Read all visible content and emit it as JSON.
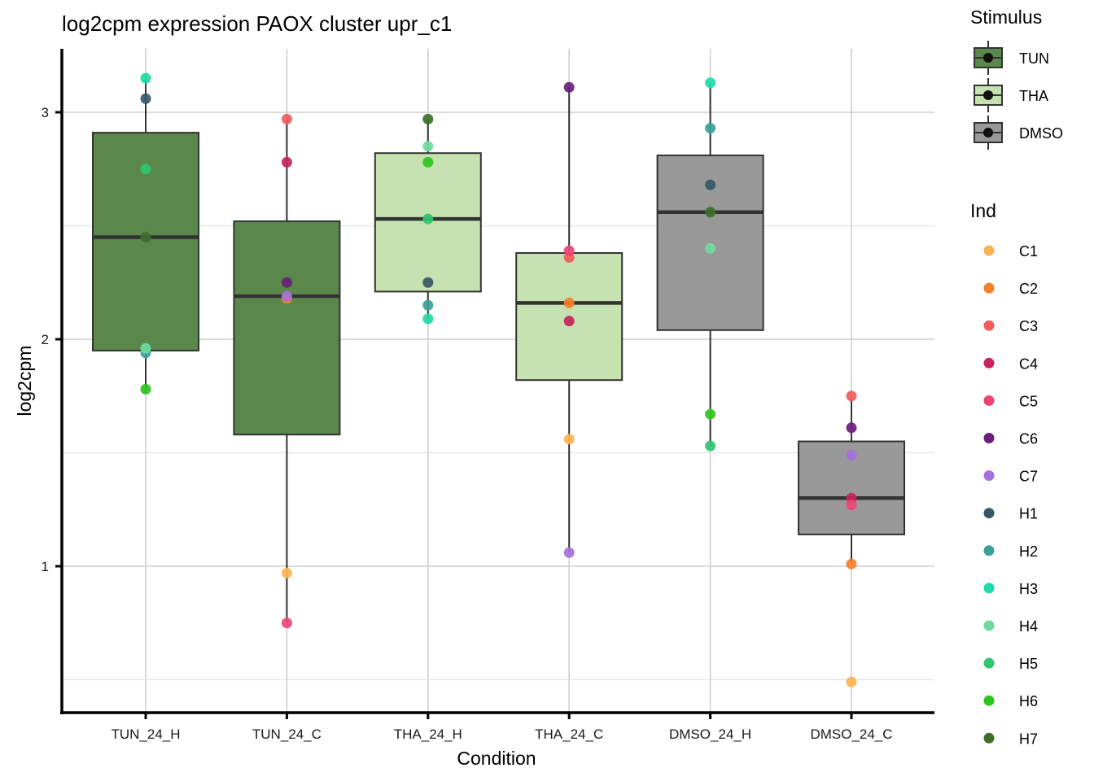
{
  "chart_data": {
    "type": "boxplot",
    "title": "log2cpm expression PAOX cluster upr_c1",
    "xlabel": "Condition",
    "ylabel": "log2cpm",
    "ylim": [
      0.36,
      3.3
    ],
    "yticks": [
      1,
      2,
      3
    ],
    "ytick_labels": [
      "1",
      "2",
      "3"
    ],
    "y_minor_gridlines": [
      0.5,
      1.5,
      2.5
    ],
    "grid": true,
    "categories": [
      "TUN_24_H",
      "TUN_24_C",
      "THA_24_H",
      "THA_24_C",
      "DMSO_24_H",
      "DMSO_24_C"
    ],
    "boxes": [
      {
        "condition": "TUN_24_H",
        "stimulus": "TUN",
        "lower_whisker": 1.78,
        "q1": 1.95,
        "median": 2.45,
        "q3": 2.91,
        "upper_whisker": 3.15
      },
      {
        "condition": "TUN_24_C",
        "stimulus": "TUN",
        "lower_whisker": 0.75,
        "q1": 1.58,
        "median": 2.19,
        "q3": 2.52,
        "upper_whisker": 2.97
      },
      {
        "condition": "THA_24_H",
        "stimulus": "THA",
        "lower_whisker": 2.09,
        "q1": 2.21,
        "median": 2.53,
        "q3": 2.82,
        "upper_whisker": 2.97
      },
      {
        "condition": "THA_24_C",
        "stimulus": "THA",
        "lower_whisker": 1.06,
        "q1": 1.82,
        "median": 2.16,
        "q3": 2.38,
        "upper_whisker": 3.11
      },
      {
        "condition": "DMSO_24_H",
        "stimulus": "DMSO",
        "lower_whisker": 1.53,
        "q1": 2.04,
        "median": 2.56,
        "q3": 2.81,
        "upper_whisker": 3.13
      },
      {
        "condition": "DMSO_24_C",
        "stimulus": "DMSO",
        "lower_whisker": 1.01,
        "q1": 1.14,
        "median": 1.3,
        "q3": 1.55,
        "upper_whisker": 1.74
      }
    ],
    "points": [
      {
        "condition": "TUN_24_H",
        "ind": "H3",
        "value": 3.15
      },
      {
        "condition": "TUN_24_H",
        "ind": "H1",
        "value": 3.06
      },
      {
        "condition": "TUN_24_H",
        "ind": "H5",
        "value": 2.75
      },
      {
        "condition": "TUN_24_H",
        "ind": "H7",
        "value": 2.45
      },
      {
        "condition": "TUN_24_H",
        "ind": "H2",
        "value": 1.94
      },
      {
        "condition": "TUN_24_H",
        "ind": "H4",
        "value": 1.96
      },
      {
        "condition": "TUN_24_H",
        "ind": "H6",
        "value": 1.78
      },
      {
        "condition": "TUN_24_C",
        "ind": "C3",
        "value": 2.97
      },
      {
        "condition": "TUN_24_C",
        "ind": "C4",
        "value": 2.78
      },
      {
        "condition": "TUN_24_C",
        "ind": "C6",
        "value": 2.25
      },
      {
        "condition": "TUN_24_C",
        "ind": "C2",
        "value": 2.18
      },
      {
        "condition": "TUN_24_C",
        "ind": "C7",
        "value": 2.19
      },
      {
        "condition": "TUN_24_C",
        "ind": "C1",
        "value": 0.97
      },
      {
        "condition": "TUN_24_C",
        "ind": "C5",
        "value": 0.75
      },
      {
        "condition": "THA_24_H",
        "ind": "H7",
        "value": 2.97
      },
      {
        "condition": "THA_24_H",
        "ind": "H4",
        "value": 2.85
      },
      {
        "condition": "THA_24_H",
        "ind": "H6",
        "value": 2.78
      },
      {
        "condition": "THA_24_H",
        "ind": "H5",
        "value": 2.53
      },
      {
        "condition": "THA_24_H",
        "ind": "H1",
        "value": 2.25
      },
      {
        "condition": "THA_24_H",
        "ind": "H2",
        "value": 2.15
      },
      {
        "condition": "THA_24_H",
        "ind": "H3",
        "value": 2.09
      },
      {
        "condition": "THA_24_C",
        "ind": "C6",
        "value": 3.11
      },
      {
        "condition": "THA_24_C",
        "ind": "C3",
        "value": 2.36
      },
      {
        "condition": "THA_24_C",
        "ind": "C5",
        "value": 2.39
      },
      {
        "condition": "THA_24_C",
        "ind": "C2",
        "value": 2.16
      },
      {
        "condition": "THA_24_C",
        "ind": "C4",
        "value": 2.08
      },
      {
        "condition": "THA_24_C",
        "ind": "C1",
        "value": 1.56
      },
      {
        "condition": "THA_24_C",
        "ind": "C7",
        "value": 1.06
      },
      {
        "condition": "DMSO_24_H",
        "ind": "H3",
        "value": 3.13
      },
      {
        "condition": "DMSO_24_H",
        "ind": "H2",
        "value": 2.93
      },
      {
        "condition": "DMSO_24_H",
        "ind": "H1",
        "value": 2.68
      },
      {
        "condition": "DMSO_24_H",
        "ind": "H7",
        "value": 2.56
      },
      {
        "condition": "DMSO_24_H",
        "ind": "H4",
        "value": 2.4
      },
      {
        "condition": "DMSO_24_H",
        "ind": "H6",
        "value": 1.67
      },
      {
        "condition": "DMSO_24_H",
        "ind": "H5",
        "value": 1.53
      },
      {
        "condition": "DMSO_24_C",
        "ind": "C3",
        "value": 1.75
      },
      {
        "condition": "DMSO_24_C",
        "ind": "C6",
        "value": 1.61
      },
      {
        "condition": "DMSO_24_C",
        "ind": "C7",
        "value": 1.49
      },
      {
        "condition": "DMSO_24_C",
        "ind": "C4",
        "value": 1.3
      },
      {
        "condition": "DMSO_24_C",
        "ind": "C5",
        "value": 1.27
      },
      {
        "condition": "DMSO_24_C",
        "ind": "C2",
        "value": 1.01
      },
      {
        "condition": "DMSO_24_C",
        "ind": "C1",
        "value": 0.49
      }
    ],
    "legend_stimulus": {
      "title": "Stimulus",
      "placement": "top-right",
      "entries": [
        {
          "label": "TUN",
          "color": "#5a874a"
        },
        {
          "label": "THA",
          "color": "#c6e2b0"
        },
        {
          "label": "DMSO",
          "color": "#999999"
        }
      ]
    },
    "legend_ind": {
      "title": "Ind",
      "placement": "right",
      "entries": [
        {
          "label": "C1",
          "color": "#fbb454"
        },
        {
          "label": "C2",
          "color": "#f57f2a"
        },
        {
          "label": "C3",
          "color": "#f25c5c"
        },
        {
          "label": "C4",
          "color": "#c8235c"
        },
        {
          "label": "C5",
          "color": "#ee4474"
        },
        {
          "label": "C6",
          "color": "#6a1f7a"
        },
        {
          "label": "C7",
          "color": "#a470dc"
        },
        {
          "label": "H1",
          "color": "#365868"
        },
        {
          "label": "H2",
          "color": "#3aa098"
        },
        {
          "label": "H3",
          "color": "#1ddaa6"
        },
        {
          "label": "H4",
          "color": "#6fdc9c"
        },
        {
          "label": "H5",
          "color": "#2ec66e"
        },
        {
          "label": "H6",
          "color": "#2ec41e"
        },
        {
          "label": "H7",
          "color": "#3e6e2a"
        }
      ]
    }
  }
}
